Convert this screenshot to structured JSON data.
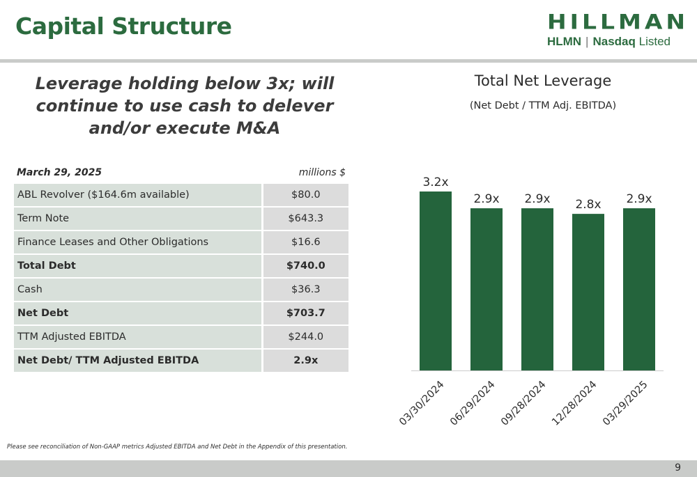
{
  "header": {
    "title": "Capital Structure",
    "logo": {
      "wordmark": "HILLMAN",
      "ticker": "HLMN",
      "separator": "|",
      "exchange": "Nasdaq",
      "listed": "Listed"
    }
  },
  "headline": "Leverage holding below 3x; will continue to use cash to delever and/or execute M&A",
  "table": {
    "date_label": "March 29, 2025",
    "units_label": "millions $",
    "rows": [
      {
        "label": "ABL Revolver ($164.6m available)",
        "value": "$80.0",
        "bold": false
      },
      {
        "label": "Term Note",
        "value": "$643.3",
        "bold": false
      },
      {
        "label": "Finance Leases and Other Obligations",
        "value": "$16.6",
        "bold": false
      },
      {
        "label": "Total Debt",
        "value": "$740.0",
        "bold": true
      },
      {
        "label": "Cash",
        "value": "$36.3",
        "bold": false
      },
      {
        "label": "Net Debt",
        "value": "$703.7",
        "bold": true
      },
      {
        "label": "TTM Adjusted EBITDA",
        "value": "$244.0",
        "bold": false
      },
      {
        "label": "Net Debt/ TTM Adjusted EBITDA",
        "value": "2.9x",
        "bold": true
      }
    ]
  },
  "chart_data": {
    "type": "bar",
    "title": "Total Net Leverage",
    "subtitle": "(Net Debt / TTM Adj. EBITDA)",
    "categories": [
      "03/30/2024",
      "06/29/2024",
      "09/28/2024",
      "12/28/2024",
      "03/29/2025"
    ],
    "values": [
      3.2,
      2.9,
      2.9,
      2.8,
      2.9
    ],
    "value_labels": [
      "3.2x",
      "2.9x",
      "2.9x",
      "2.8x",
      "2.9x"
    ],
    "bar_color": "#24643c",
    "ylim": [
      0,
      3.2
    ],
    "grid": false,
    "xlabel": "",
    "ylabel": ""
  },
  "footnote": "Please see reconciliation of Non-GAAP metrics Adjusted EBITDA and Net Debt in the Appendix of this presentation.",
  "page_number": "9",
  "colors": {
    "brand_green": "#2c6b3f",
    "bar_green": "#24643c",
    "table_label_bg": "#d8e0da",
    "table_value_bg": "#dcdcdc",
    "rule_gray": "#c9cbc9"
  }
}
